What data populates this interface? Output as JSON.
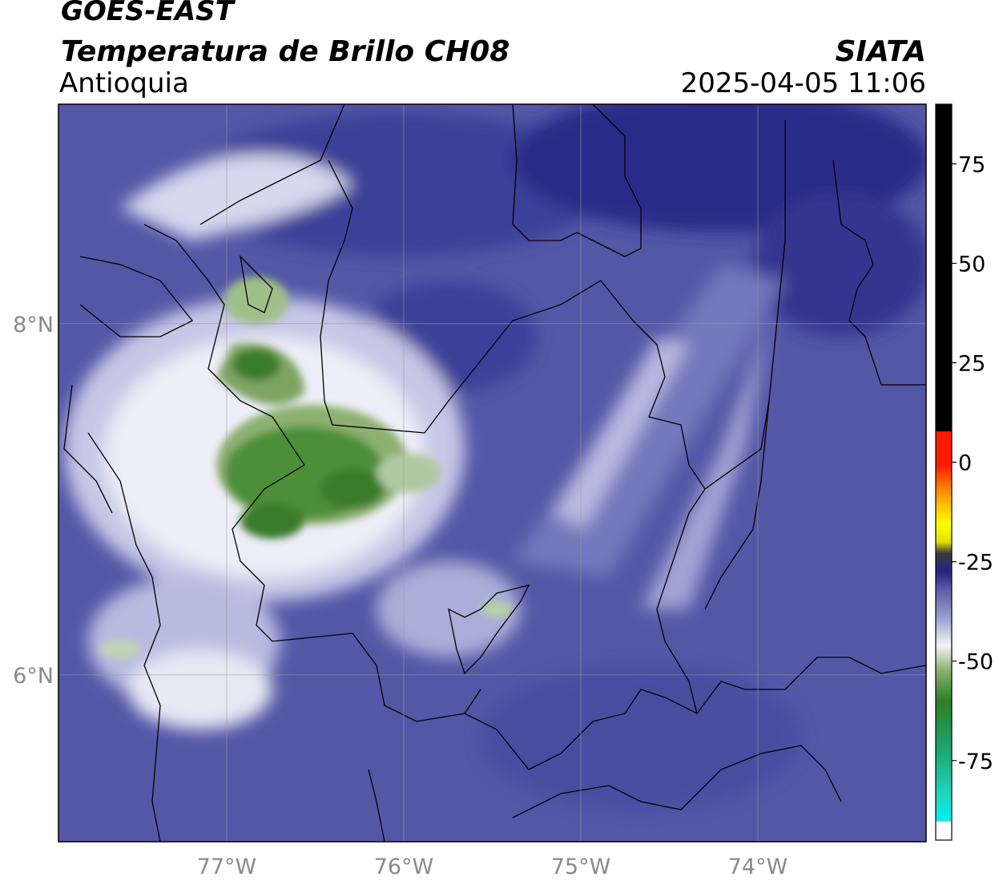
{
  "header": {
    "satellite": "GOES-EAST",
    "product": "Temperatura de Brillo CH08",
    "region": "Antioquia",
    "brand": "SIATA",
    "timestamp": "2025-04-05 11:06"
  },
  "map": {
    "lon_range": [
      -77.95,
      -73.05
    ],
    "lat_range": [
      5.05,
      9.25
    ],
    "lon_ticks": [
      {
        "value": -77,
        "label": "77°W"
      },
      {
        "value": -76,
        "label": "76°W"
      },
      {
        "value": -75,
        "label": "75°W"
      },
      {
        "value": -74,
        "label": "74°W"
      }
    ],
    "lat_ticks": [
      {
        "value": 8,
        "label": "8°N"
      },
      {
        "value": 6,
        "label": "6°N"
      }
    ],
    "gridlines": true
  },
  "colorbar": {
    "ticks": [
      {
        "value": 75,
        "label": "75"
      },
      {
        "value": 50,
        "label": "50"
      },
      {
        "value": 25,
        "label": "25"
      },
      {
        "value": 0,
        "label": "0"
      },
      {
        "value": -25,
        "label": "-25"
      },
      {
        "value": -50,
        "label": "-50"
      },
      {
        "value": -75,
        "label": "-75"
      }
    ],
    "range": [
      -95,
      90
    ],
    "colors": {
      "black": "#000000",
      "red": "#ff1a00",
      "orange": "#ff9900",
      "yellow": "#ffff00",
      "navy": "#1a1a7a",
      "periwinkle": "#5a5fa8",
      "white": "#ffffff",
      "green": "#3a8a2a",
      "teal": "#20c8a0",
      "cyan": "#00f0f0"
    }
  }
}
